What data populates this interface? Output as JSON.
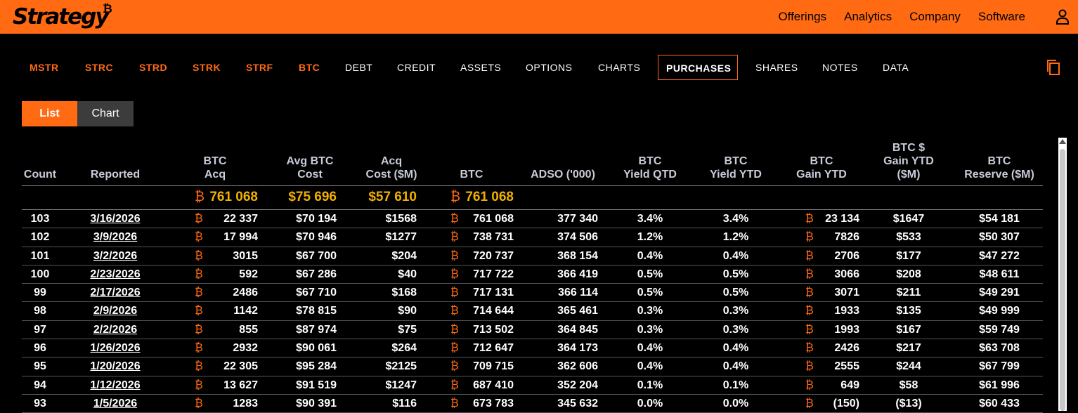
{
  "brand": {
    "name": "Strategy",
    "mark": "₿"
  },
  "main_nav": [
    "Offerings",
    "Analytics",
    "Company",
    "Software"
  ],
  "sub_nav": [
    "MSTR",
    "STRC",
    "STRD",
    "STRK",
    "STRF",
    "BTC",
    "DEBT",
    "CREDIT",
    "ASSETS",
    "OPTIONS",
    "CHARTS",
    "PURCHASES",
    "SHARES",
    "NOTES",
    "DATA"
  ],
  "active_tab": "PURCHASES",
  "view_toggle": {
    "list": "List",
    "chart": "Chart",
    "selected": "List"
  },
  "colors": {
    "accent": "#ff6a13",
    "totals": "#f0b000",
    "header": "#c9ccd8"
  },
  "table": {
    "headers": {
      "count": [
        "Count"
      ],
      "reported": [
        "Reported"
      ],
      "btc_acq": [
        "BTC",
        "Acq"
      ],
      "avg_cost": [
        "Avg BTC",
        "Cost"
      ],
      "acq_cost": [
        "Acq",
        "Cost ($M)"
      ],
      "btc": [
        "BTC"
      ],
      "adso": [
        "ADSO ('000)"
      ],
      "yield_qtd": [
        "BTC",
        "Yield QTD"
      ],
      "yield_ytd": [
        "BTC",
        "Yield YTD"
      ],
      "gain_ytd": [
        "BTC",
        "Gain YTD"
      ],
      "gain_usd": [
        "BTC $",
        "Gain YTD",
        "($M)"
      ],
      "reserve": [
        "BTC",
        "Reserve ($M)"
      ]
    },
    "totals": {
      "btc_acq": "761 068",
      "avg_cost": "$75 696",
      "acq_cost": "$57 610",
      "btc": "761 068"
    },
    "btc_symbol": "₿",
    "rows": [
      [
        "103",
        "3/16/2026",
        "22 337",
        "$70 194",
        "$1568",
        "761 068",
        "377 340",
        "3.4%",
        "3.4%",
        "23 134",
        "$1647",
        "$54 181"
      ],
      [
        "102",
        "3/9/2026",
        "17 994",
        "$70 946",
        "$1277",
        "738 731",
        "374 506",
        "1.2%",
        "1.2%",
        "7826",
        "$533",
        "$50 307"
      ],
      [
        "101",
        "3/2/2026",
        "3015",
        "$67 700",
        "$204",
        "720 737",
        "368 154",
        "0.4%",
        "0.4%",
        "2706",
        "$177",
        "$47 272"
      ],
      [
        "100",
        "2/23/2026",
        "592",
        "$67 286",
        "$40",
        "717 722",
        "366 419",
        "0.5%",
        "0.5%",
        "3066",
        "$208",
        "$48 611"
      ],
      [
        "99",
        "2/17/2026",
        "2486",
        "$67 710",
        "$168",
        "717 131",
        "366 114",
        "0.5%",
        "0.5%",
        "3071",
        "$211",
        "$49 291"
      ],
      [
        "98",
        "2/9/2026",
        "1142",
        "$78 815",
        "$90",
        "714 644",
        "365 461",
        "0.3%",
        "0.3%",
        "1933",
        "$135",
        "$49 999"
      ],
      [
        "97",
        "2/2/2026",
        "855",
        "$87 974",
        "$75",
        "713 502",
        "364 845",
        "0.3%",
        "0.3%",
        "1993",
        "$167",
        "$59 749"
      ],
      [
        "96",
        "1/26/2026",
        "2932",
        "$90 061",
        "$264",
        "712 647",
        "364 173",
        "0.4%",
        "0.4%",
        "2426",
        "$217",
        "$63 708"
      ],
      [
        "95",
        "1/20/2026",
        "22 305",
        "$95 284",
        "$2125",
        "709 715",
        "362 606",
        "0.4%",
        "0.4%",
        "2555",
        "$244",
        "$67 799"
      ],
      [
        "94",
        "1/12/2026",
        "13 627",
        "$91 519",
        "$1247",
        "687 410",
        "352 204",
        "0.1%",
        "0.1%",
        "649",
        "$58",
        "$61 996"
      ],
      [
        "93",
        "1/5/2026",
        "1283",
        "$90 391",
        "$116",
        "673 783",
        "345 632",
        "0.0%",
        "0.0%",
        "(150)",
        "($13)",
        "$60 433"
      ]
    ]
  }
}
